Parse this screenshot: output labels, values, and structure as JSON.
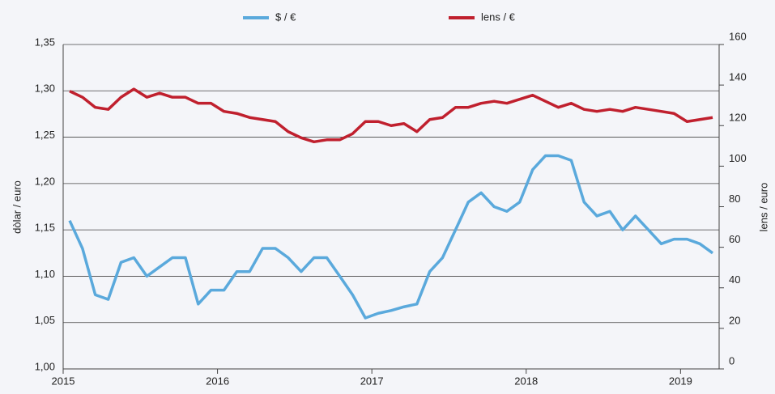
{
  "chart_data": {
    "type": "line",
    "ylabel": "dòlar / euro",
    "y2label": "lens / euro",
    "x": [
      2015.042,
      2015.125,
      2015.208,
      2015.292,
      2015.375,
      2015.458,
      2015.542,
      2015.625,
      2015.708,
      2015.792,
      2015.875,
      2015.958,
      2016.042,
      2016.125,
      2016.208,
      2016.292,
      2016.375,
      2016.458,
      2016.542,
      2016.625,
      2016.708,
      2016.792,
      2016.875,
      2016.958,
      2017.042,
      2017.125,
      2017.208,
      2017.292,
      2017.375,
      2017.458,
      2017.542,
      2017.625,
      2017.708,
      2017.792,
      2017.875,
      2017.958,
      2018.042,
      2018.125,
      2018.208,
      2018.292,
      2018.375,
      2018.458,
      2018.542,
      2018.625,
      2018.708,
      2018.792,
      2018.875,
      2018.958,
      2019.042,
      2019.125,
      2019.208
    ],
    "series": [
      {
        "name": "$ / €",
        "color": "#5aa9dc",
        "axis": "y",
        "values": [
          1.16,
          1.13,
          1.08,
          1.075,
          1.115,
          1.12,
          1.1,
          1.11,
          1.12,
          1.12,
          1.07,
          1.085,
          1.085,
          1.105,
          1.105,
          1.13,
          1.13,
          1.12,
          1.105,
          1.12,
          1.12,
          1.1,
          1.08,
          1.055,
          1.06,
          1.063,
          1.067,
          1.07,
          1.105,
          1.12,
          1.15,
          1.18,
          1.19,
          1.175,
          1.17,
          1.18,
          1.215,
          1.23,
          1.23,
          1.225,
          1.18,
          1.165,
          1.17,
          1.15,
          1.165,
          1.15,
          1.135,
          1.14,
          1.14,
          1.135,
          1.125
        ]
      },
      {
        "name": "lens / €",
        "color": "#c0202e",
        "axis": "y2",
        "values": [
          137,
          134,
          129,
          128,
          134,
          138,
          134,
          136,
          134,
          134,
          131,
          131,
          127,
          126,
          124,
          123,
          122,
          117,
          114,
          112,
          113,
          113,
          116,
          122,
          122,
          120,
          121,
          117,
          123,
          124,
          129,
          129,
          131,
          132,
          131,
          133,
          135,
          132,
          129,
          131,
          128,
          127,
          128,
          127,
          129,
          128,
          127,
          126,
          122,
          123,
          124
        ]
      }
    ],
    "xlim": [
      2015,
      2019.25
    ],
    "xticks": [
      2015,
      2016,
      2017,
      2018,
      2019
    ],
    "ylim": [
      1.0,
      1.35
    ],
    "yticks": [
      {
        "value": 1.0,
        "label": "1,00"
      },
      {
        "value": 1.05,
        "label": "1,05"
      },
      {
        "value": 1.1,
        "label": "1,10"
      },
      {
        "value": 1.15,
        "label": "1,15"
      },
      {
        "value": 1.2,
        "label": "1,20"
      },
      {
        "value": 1.25,
        "label": "1,25"
      },
      {
        "value": 1.3,
        "label": "1,30"
      },
      {
        "value": 1.35,
        "label": "1,35"
      }
    ],
    "y2lim": [
      0,
      160
    ],
    "y2ticks": [
      0,
      20,
      40,
      60,
      80,
      100,
      120,
      140,
      160
    ],
    "grid": true,
    "legend": "top"
  }
}
